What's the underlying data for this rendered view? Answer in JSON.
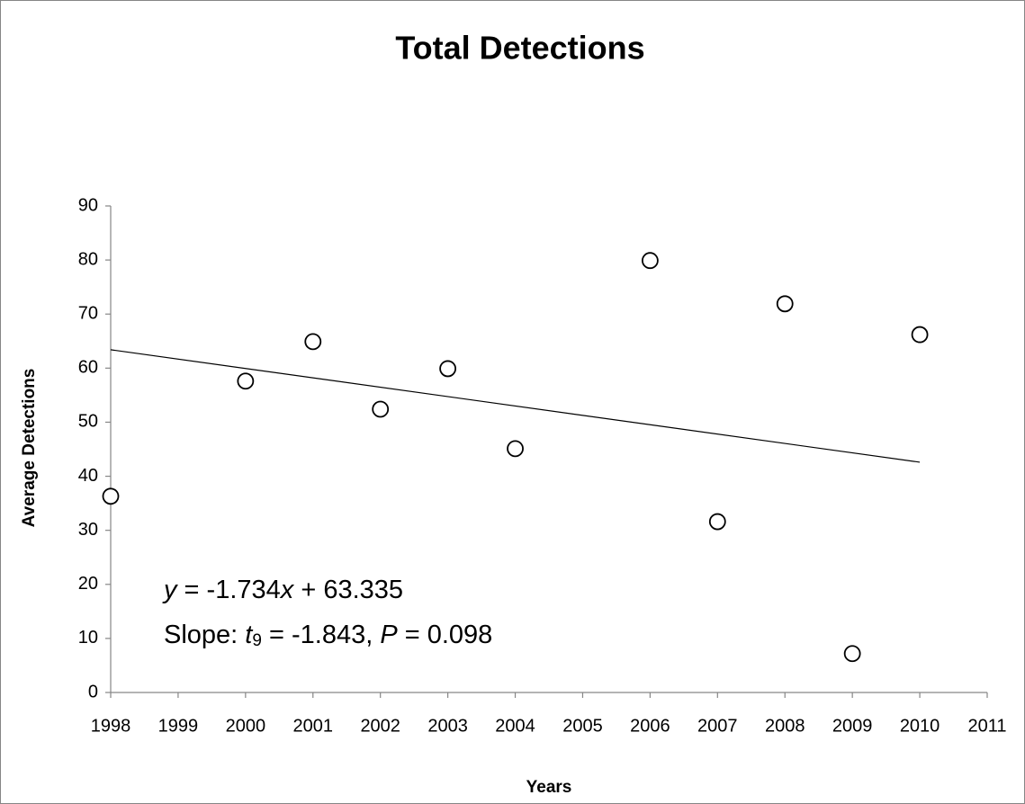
{
  "chart_data": {
    "type": "scatter",
    "title": "Total Detections",
    "xlabel": "Years",
    "ylabel": "Average Detections",
    "x": [
      1998,
      2000,
      2001,
      2002,
      2003,
      2004,
      2006,
      2007,
      2008,
      2009,
      2010
    ],
    "values": [
      36.3,
      57.6,
      64.9,
      52.4,
      59.9,
      45.1,
      79.9,
      31.6,
      71.9,
      7.2,
      66.2
    ],
    "color": "#000000",
    "trendline": {
      "x": [
        1998,
        2010
      ],
      "values": [
        63.4,
        42.6
      ]
    },
    "xlim": [
      1998,
      2011
    ],
    "xticks": [
      1998,
      1999,
      2000,
      2001,
      2002,
      2003,
      2004,
      2005,
      2006,
      2007,
      2008,
      2009,
      2010,
      2011
    ],
    "ylim": [
      0,
      90
    ],
    "yticks": [
      0,
      10,
      20,
      30,
      40,
      50,
      60,
      70,
      80,
      90
    ],
    "grid": false,
    "annotations": [
      [
        "y",
        " = -1.734",
        "x",
        " + 63.335"
      ],
      [
        "Slope: ",
        "t",
        "9",
        " = -1.843, ",
        "P",
        " = 0.098"
      ]
    ]
  }
}
